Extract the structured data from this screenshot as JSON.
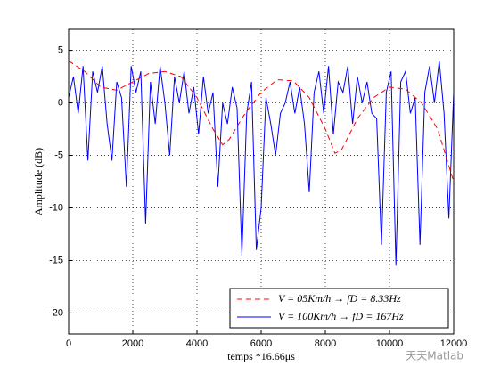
{
  "chart_data": {
    "type": "line",
    "xlabel": "temps *16.66μs",
    "ylabel": "Amplitude (dB)",
    "xlim": [
      0,
      12000
    ],
    "xticks": [
      0,
      2000,
      4000,
      6000,
      8000,
      10000,
      12000
    ],
    "ylim": [
      -22,
      7
    ],
    "yticks": [
      -20,
      -15,
      -10,
      -5,
      0,
      5
    ],
    "grid": true,
    "legend": "lower right",
    "watermark": "天天Matlab",
    "series": [
      {
        "name": "V = 05Km/h → fD = 8.33Hz",
        "color": "#ff0000",
        "dash": true,
        "x": [
          0,
          500,
          1000,
          1500,
          2000,
          2500,
          3000,
          3500,
          4000,
          4500,
          4800,
          5000,
          5500,
          6000,
          6500,
          7000,
          7500,
          8000,
          8300,
          8500,
          9000,
          9500,
          10000,
          10500,
          11000,
          11500,
          12000
        ],
        "values": [
          4,
          3,
          1.5,
          1.2,
          2,
          2.8,
          3,
          2.5,
          0.5,
          -2.5,
          -4,
          -3.5,
          -1,
          1,
          2.2,
          2.1,
          0.5,
          -2.5,
          -4.8,
          -4.5,
          -1.5,
          0.5,
          1.5,
          1.3,
          0,
          -2.5,
          -7.5
        ]
      },
      {
        "name": "V = 100Km/h → fD = 167Hz",
        "color": "#0000ff",
        "dash": false,
        "x": [
          0,
          150,
          300,
          450,
          600,
          750,
          900,
          1050,
          1200,
          1350,
          1500,
          1650,
          1800,
          1950,
          2100,
          2250,
          2400,
          2550,
          2700,
          2850,
          3000,
          3150,
          3300,
          3450,
          3600,
          3750,
          3900,
          4050,
          4200,
          4350,
          4500,
          4650,
          4800,
          4950,
          5100,
          5250,
          5400,
          5550,
          5700,
          5850,
          6000,
          6150,
          6300,
          6450,
          6600,
          6750,
          6900,
          7050,
          7200,
          7350,
          7500,
          7650,
          7800,
          7950,
          8100,
          8250,
          8400,
          8550,
          8700,
          8850,
          9000,
          9150,
          9300,
          9450,
          9600,
          9750,
          9900,
          10050,
          10200,
          10350,
          10500,
          10650,
          10800,
          10950,
          11100,
          11250,
          11400,
          11550,
          11700,
          11850,
          12000
        ],
        "values": [
          0.5,
          2.5,
          -1,
          3.5,
          -5.5,
          3,
          1,
          3.5,
          -2,
          -5.5,
          2,
          0.5,
          -8,
          3.5,
          1,
          3,
          -11.5,
          2,
          -2,
          3.5,
          0,
          -5,
          2.5,
          0,
          3,
          -1,
          1.5,
          -3,
          2.5,
          -1,
          1,
          -8,
          0,
          -2,
          1.5,
          -0.5,
          -14.5,
          -1,
          2,
          -14,
          -10,
          0.5,
          -2,
          -5,
          -1,
          0,
          2,
          -1,
          1.5,
          -2,
          -8.5,
          1,
          3,
          -1,
          3.5,
          -3,
          2,
          1,
          3.5,
          -2,
          2.5,
          0,
          2,
          -1,
          -1.5,
          -13.5,
          1,
          3,
          -15.5,
          2,
          3,
          -1,
          0.5,
          -13.5,
          1,
          3.5,
          0,
          4,
          -1,
          -11,
          1
        ]
      }
    ]
  }
}
